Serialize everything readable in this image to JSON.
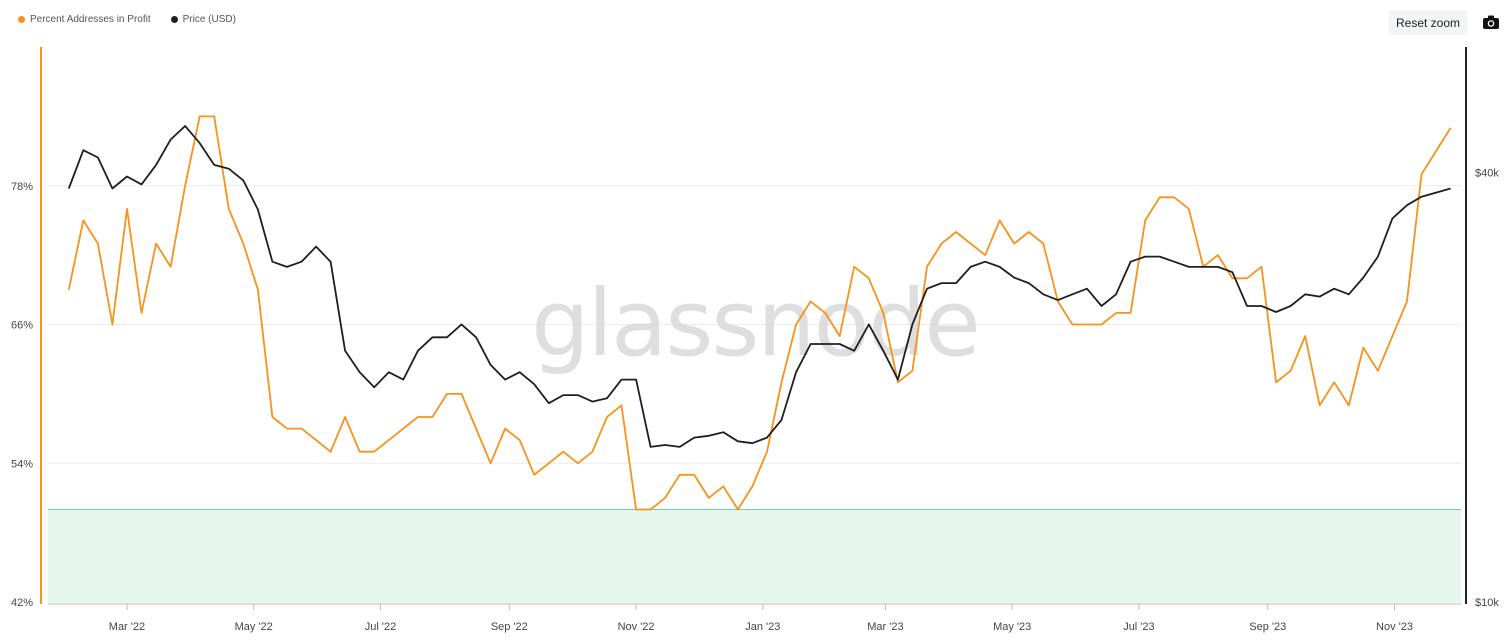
{
  "legend": {
    "series1": "Percent Addresses in Profit",
    "series2": "Price (USD)"
  },
  "toolbar": {
    "reset_zoom": "Reset zoom",
    "camera_icon": "camera-icon"
  },
  "watermark": "glassnode",
  "colors": {
    "profit": "#f7931a",
    "price": "#1f1f1f",
    "band_fill": "#e6f6ef",
    "band_line": "#6fcfa5"
  },
  "chart_data": {
    "type": "line",
    "x": [
      "2022-02-01",
      "2022-02-08",
      "2022-02-15",
      "2022-02-22",
      "2022-03-01",
      "2022-03-08",
      "2022-03-15",
      "2022-03-22",
      "2022-03-29",
      "2022-04-05",
      "2022-04-12",
      "2022-04-19",
      "2022-04-26",
      "2022-05-03",
      "2022-05-10",
      "2022-05-17",
      "2022-05-24",
      "2022-05-31",
      "2022-06-07",
      "2022-06-14",
      "2022-06-21",
      "2022-06-28",
      "2022-07-05",
      "2022-07-12",
      "2022-07-19",
      "2022-07-26",
      "2022-08-02",
      "2022-08-09",
      "2022-08-16",
      "2022-08-23",
      "2022-08-30",
      "2022-09-06",
      "2022-09-13",
      "2022-09-20",
      "2022-09-27",
      "2022-10-04",
      "2022-10-11",
      "2022-10-18",
      "2022-10-25",
      "2022-11-01",
      "2022-11-08",
      "2022-11-15",
      "2022-11-22",
      "2022-11-29",
      "2022-12-06",
      "2022-12-13",
      "2022-12-20",
      "2022-12-27",
      "2023-01-03",
      "2023-01-10",
      "2023-01-17",
      "2023-01-24",
      "2023-01-31",
      "2023-02-07",
      "2023-02-14",
      "2023-02-21",
      "2023-02-28",
      "2023-03-07",
      "2023-03-14",
      "2023-03-21",
      "2023-03-28",
      "2023-04-04",
      "2023-04-11",
      "2023-04-18",
      "2023-04-25",
      "2023-05-02",
      "2023-05-09",
      "2023-05-16",
      "2023-05-23",
      "2023-05-30",
      "2023-06-06",
      "2023-06-13",
      "2023-06-20",
      "2023-06-27",
      "2023-07-04",
      "2023-07-11",
      "2023-07-18",
      "2023-07-25",
      "2023-08-01",
      "2023-08-08",
      "2023-08-15",
      "2023-08-22",
      "2023-08-29",
      "2023-09-05",
      "2023-09-12",
      "2023-09-19",
      "2023-09-26",
      "2023-10-03",
      "2023-10-10",
      "2023-10-17",
      "2023-10-24",
      "2023-10-31",
      "2023-11-07",
      "2023-11-14",
      "2023-11-21",
      "2023-11-28"
    ],
    "series": [
      {
        "name": "Percent Addresses in Profit",
        "values": [
          69,
          75,
          73,
          66,
          76,
          67,
          73,
          71,
          78,
          84,
          84,
          76,
          73,
          69,
          58,
          57,
          57,
          56,
          55,
          58,
          55,
          55,
          56,
          57,
          58,
          58,
          60,
          60,
          57,
          54,
          57,
          56,
          53,
          54,
          55,
          54,
          55,
          58,
          59,
          50,
          50,
          51,
          53,
          53,
          51,
          52,
          50,
          52,
          55,
          61,
          66,
          68,
          67,
          65,
          71,
          70,
          67,
          61,
          62,
          71,
          73,
          74,
          73,
          72,
          75,
          73,
          74,
          73,
          68,
          66,
          66,
          66,
          67,
          67,
          75,
          77,
          77,
          76,
          71,
          72,
          70,
          70,
          71,
          61,
          62,
          65,
          59,
          61,
          59,
          64,
          62,
          65,
          68,
          79,
          81,
          83
        ]
      },
      {
        "name": "Price (USD)",
        "values": [
          38000,
          43000,
          42000,
          38000,
          39500,
          38500,
          41000,
          44500,
          46500,
          44000,
          41000,
          40500,
          39000,
          35500,
          30000,
          29500,
          30000,
          31500,
          30000,
          22500,
          21000,
          20000,
          21000,
          20500,
          22500,
          23500,
          23500,
          24500,
          23500,
          21500,
          20500,
          21000,
          20200,
          19000,
          19500,
          19500,
          19100,
          19300,
          20500,
          20500,
          16500,
          16600,
          16500,
          17000,
          17100,
          17300,
          16800,
          16700,
          17000,
          18000,
          21000,
          23000,
          23000,
          23000,
          22500,
          24500,
          22500,
          20500,
          24500,
          27500,
          28000,
          28000,
          29500,
          30000,
          29500,
          28500,
          28000,
          27000,
          26500,
          27000,
          27500,
          26000,
          27000,
          30000,
          30500,
          30500,
          30000,
          29500,
          29500,
          29500,
          29000,
          26000,
          26000,
          25500,
          26000,
          27000,
          26800,
          27500,
          27000,
          28500,
          30500,
          34500,
          36000,
          37000,
          37500,
          38000
        ]
      }
    ],
    "y_left": {
      "ticks": [
        "42%",
        "54%",
        "66%",
        "78%"
      ],
      "range": [
        42,
        90
      ]
    },
    "y_right": {
      "ticks": [
        "$10k",
        "$40k"
      ],
      "scale": "log",
      "range": [
        10000,
        60000
      ]
    },
    "x_ticks": [
      {
        "label": "Mar '22",
        "date": "2022-03-01"
      },
      {
        "label": "May '22",
        "date": "2022-05-01"
      },
      {
        "label": "Jul '22",
        "date": "2022-07-01"
      },
      {
        "label": "Sep '22",
        "date": "2022-09-01"
      },
      {
        "label": "Nov '22",
        "date": "2022-11-01"
      },
      {
        "label": "Jan '23",
        "date": "2023-01-01"
      },
      {
        "label": "Mar '23",
        "date": "2023-03-01"
      },
      {
        "label": "May '23",
        "date": "2023-05-01"
      },
      {
        "label": "Jul '23",
        "date": "2023-07-01"
      },
      {
        "label": "Sep '23",
        "date": "2023-09-01"
      },
      {
        "label": "Nov '23",
        "date": "2023-11-01"
      }
    ],
    "band": {
      "from": 42,
      "to": 50
    },
    "grid": true
  }
}
